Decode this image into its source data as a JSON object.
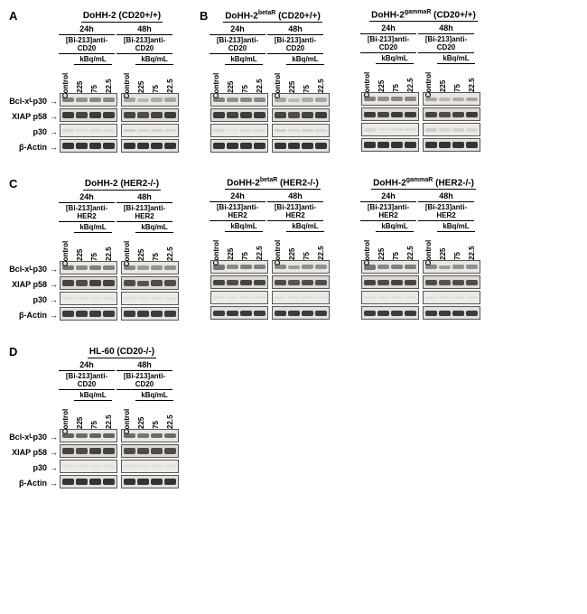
{
  "lane_width": 16,
  "row_proteins": [
    {
      "label": "Bcl-x",
      "sub": "L",
      "after": " p30"
    },
    {
      "label": "XIAP p58",
      "sub": "",
      "after": ""
    },
    {
      "label": "p30",
      "sub": "",
      "after": ""
    },
    {
      "label": "β-Actin",
      "sub": "",
      "after": ""
    }
  ],
  "timepoints": [
    "24h",
    "48h"
  ],
  "lane_labels": {
    "control": "Control",
    "doses": [
      "225",
      "75",
      "22.5"
    ],
    "kbq": "kBq/mL"
  },
  "sections": [
    {
      "letter": "A",
      "treatment": "[Bi-213]anti-CD20",
      "panels": [
        {
          "cellline": "DoHH-2",
          "suffix": "",
          "status": "(CD20+/+)"
        }
      ],
      "same_row": [
        {
          "letter": "B",
          "treatment": "[Bi-213]anti-CD20",
          "panels": [
            {
              "cellline": "DoHH-2",
              "suffix": "betaR",
              "status": "(CD20+/+)"
            },
            {
              "cellline": "DoHH-2",
              "suffix": "gammaR",
              "status": "(CD20+/+)"
            }
          ]
        }
      ],
      "bands": {
        "row_intensity": [
          [
            0.55,
            0.45,
            0.5,
            0.5,
            0.35,
            0.25,
            0.3,
            0.35
          ],
          [
            0.9,
            0.85,
            0.9,
            0.9,
            0.85,
            0.8,
            0.85,
            0.9
          ],
          [
            0.1,
            0.05,
            0.08,
            0.08,
            0.15,
            0.1,
            0.12,
            0.1
          ],
          [
            0.95,
            0.95,
            0.95,
            0.95,
            0.95,
            0.95,
            0.95,
            0.95
          ]
        ],
        "bg": [
          "#e8e6e2",
          "#ddd8d2",
          "#eceae6",
          "#e2e0dc"
        ]
      }
    },
    {
      "letter": "C",
      "treatment": "[Bi-213]anti-HER2",
      "panels": [
        {
          "cellline": "DoHH-2",
          "suffix": "",
          "status": "(HER2-/-)"
        },
        {
          "cellline": "DoHH-2",
          "suffix": "betaR",
          "status": "(HER2-/-)"
        },
        {
          "cellline": "DoHH-2",
          "suffix": "gammaR",
          "status": "(HER2-/-)"
        }
      ],
      "bands": {
        "row_intensity": [
          [
            0.6,
            0.5,
            0.55,
            0.55,
            0.5,
            0.4,
            0.45,
            0.45
          ],
          [
            0.85,
            0.8,
            0.85,
            0.85,
            0.8,
            0.75,
            0.8,
            0.8
          ],
          [
            0.05,
            0.05,
            0.05,
            0.05,
            0.05,
            0.05,
            0.05,
            0.05
          ],
          [
            0.9,
            0.9,
            0.9,
            0.9,
            0.9,
            0.9,
            0.9,
            0.9
          ]
        ],
        "bg": [
          "#e8e6e2",
          "#ddd8d2",
          "#eceae6",
          "#e2e0dc"
        ]
      }
    },
    {
      "letter": "D",
      "treatment": "[Bi-213]anti-CD20",
      "panels": [
        {
          "cellline": "HL-60",
          "suffix": "",
          "status": "(CD20-/-)"
        }
      ],
      "bands": {
        "row_intensity": [
          [
            0.7,
            0.65,
            0.7,
            0.7,
            0.65,
            0.6,
            0.65,
            0.65
          ],
          [
            0.85,
            0.8,
            0.85,
            0.85,
            0.8,
            0.8,
            0.8,
            0.8
          ],
          [
            0.05,
            0.05,
            0.05,
            0.05,
            0.05,
            0.05,
            0.05,
            0.05
          ],
          [
            0.95,
            0.95,
            0.95,
            0.95,
            0.95,
            0.95,
            0.95,
            0.95
          ]
        ],
        "bg": [
          "#e8e6e2",
          "#ddd8d2",
          "#eceae6",
          "#e2e0dc"
        ]
      }
    }
  ],
  "band_color": "#2a2a2a"
}
